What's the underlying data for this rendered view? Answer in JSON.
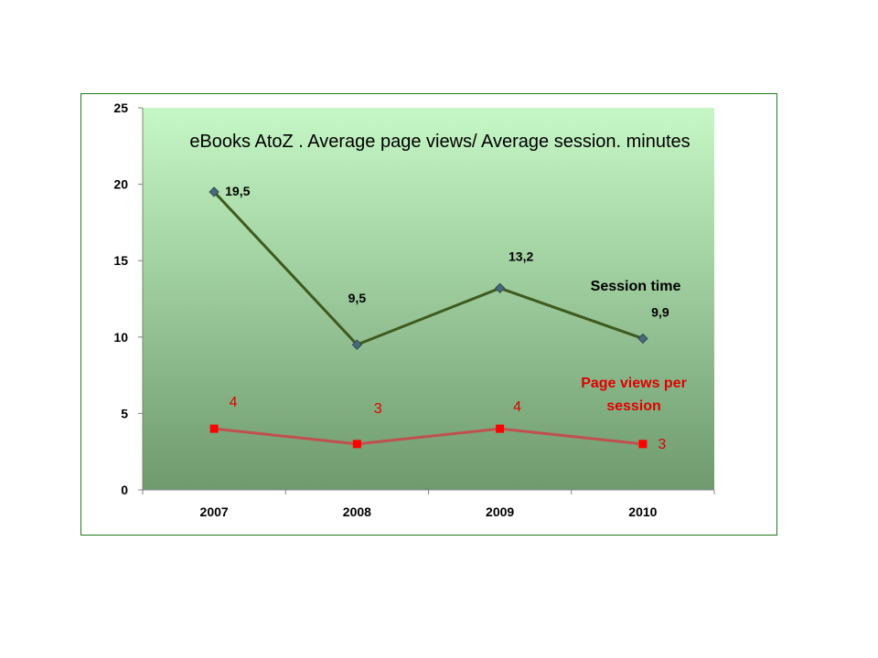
{
  "chart_data": {
    "type": "line",
    "title": "eBooks AtoZ . Average page views/ Average session. minutes",
    "categories": [
      "2007",
      "2008",
      "2009",
      "2010"
    ],
    "ylim": [
      0,
      25
    ],
    "yticks": [
      "0",
      "5",
      "10",
      "15",
      "20",
      "25"
    ],
    "grid": false,
    "legend": "none",
    "series": [
      {
        "name": "Session time",
        "values": [
          19.5,
          9.5,
          13.2,
          9.9
        ],
        "labels": [
          "19,5",
          "9,5",
          "13,2",
          "9,9"
        ],
        "color": "#3e5a1e",
        "marker": "diamond"
      },
      {
        "name": "Page views per session",
        "values": [
          4,
          3,
          4,
          3
        ],
        "labels": [
          "4",
          "3",
          "4",
          "3"
        ],
        "color": "#c0504d",
        "marker_color": "#ff0000",
        "name_color": "#e00000",
        "marker": "square"
      }
    ],
    "plot_background": [
      "#c6f7c6",
      "#6e9a6e"
    ]
  }
}
